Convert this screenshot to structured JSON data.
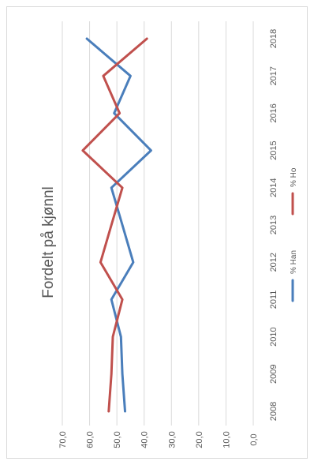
{
  "chart_data": {
    "type": "line",
    "title": "Fordelt på kjønnl",
    "xlabel": "",
    "ylabel": "",
    "x": [
      "2008",
      "2009",
      "2010",
      "2011",
      "2012",
      "2013",
      "2014",
      "2015",
      "2016",
      "2017",
      "2018"
    ],
    "ylim": [
      0,
      70
    ],
    "y_ticks": [
      "0,0",
      "10,0",
      "20,0",
      "30,0",
      "40,0",
      "50,0",
      "60,0",
      "70,0"
    ],
    "grid": true,
    "orientation": "rotated-90",
    "legend_position": "bottom",
    "series": [
      {
        "name": "% Han",
        "color": "#4a7ebb",
        "values": [
          47,
          48,
          48.5,
          52,
          44,
          48,
          52,
          37.5,
          51,
          45,
          61
        ]
      },
      {
        "name": "% Ho",
        "color": "#c0504d",
        "values": [
          53,
          52,
          51.5,
          48,
          56,
          52,
          48,
          62.5,
          49,
          55,
          39
        ]
      }
    ]
  }
}
